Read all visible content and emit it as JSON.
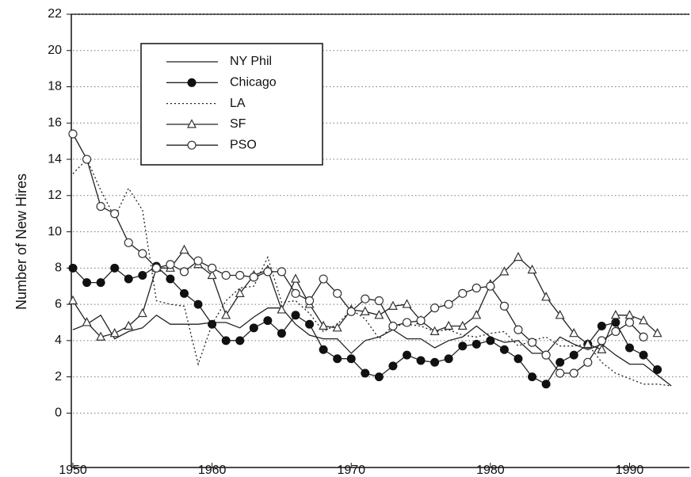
{
  "chart_data": {
    "type": "line",
    "y_label": "Number of New Hires",
    "x": [
      1950,
      1951,
      1952,
      1953,
      1954,
      1955,
      1956,
      1957,
      1958,
      1959,
      1960,
      1961,
      1962,
      1963,
      1964,
      1965,
      1966,
      1967,
      1968,
      1969,
      1970,
      1971,
      1972,
      1973,
      1974,
      1975,
      1976,
      1977,
      1978,
      1979,
      1980,
      1981,
      1982,
      1983,
      1984,
      1985,
      1986,
      1987,
      1988,
      1989,
      1990,
      1991,
      1992,
      1993
    ],
    "xlim": [
      1950,
      1994.3
    ],
    "xticks": [
      1950,
      1960,
      1970,
      1980,
      1990
    ],
    "ylim": [
      -3,
      22
    ],
    "yticks": [
      0,
      2,
      4,
      6,
      8,
      10,
      12,
      14,
      16,
      18,
      20,
      22
    ],
    "grid": true,
    "legend": "upper left",
    "series": [
      {
        "name": "NY Phil",
        "color": "#222222",
        "marker": "none",
        "dash": "solid",
        "values": [
          4.6,
          4.9,
          5.4,
          4.1,
          4.5,
          4.7,
          5.4,
          4.9,
          4.9,
          4.9,
          5.0,
          5.0,
          4.7,
          5.3,
          5.8,
          5.8,
          4.9,
          4.3,
          4.1,
          4.1,
          3.3,
          4.0,
          4.2,
          4.6,
          4.1,
          4.1,
          3.6,
          4.0,
          4.2,
          4.8,
          4.2,
          3.9,
          4.0,
          3.3,
          3.3,
          4.2,
          3.8,
          3.5,
          3.8,
          3.2,
          2.7,
          2.7,
          2.1,
          1.5
        ]
      },
      {
        "name": "Chicago",
        "color": "#222222",
        "marker": "filled-circle",
        "dash": "solid",
        "values": [
          8.0,
          7.2,
          7.2,
          8.0,
          7.4,
          7.6,
          8.1,
          7.4,
          6.6,
          6.0,
          4.9,
          4.0,
          4.0,
          4.7,
          5.1,
          4.4,
          5.4,
          4.9,
          3.5,
          3.0,
          3.0,
          2.2,
          2.0,
          2.6,
          3.2,
          2.9,
          2.8,
          3.0,
          3.7,
          3.8,
          4.0,
          3.5,
          3.0,
          2.0,
          1.6,
          2.8,
          3.2,
          3.8,
          4.8,
          5.0,
          3.6,
          3.2,
          2.4,
          null
        ]
      },
      {
        "name": "LA",
        "color": "#222222",
        "marker": "none",
        "dash": "dotted",
        "values": [
          13.2,
          14.0,
          12.3,
          10.8,
          12.4,
          11.2,
          6.2,
          6.0,
          5.9,
          2.7,
          4.9,
          6.2,
          6.9,
          7.0,
          8.6,
          6.1,
          6.2,
          5.5,
          4.5,
          4.9,
          5.7,
          5.2,
          4.1,
          4.8,
          4.9,
          4.8,
          4.5,
          4.6,
          4.3,
          4.2,
          4.4,
          4.5,
          3.7,
          4.0,
          4.2,
          3.7,
          3.7,
          3.8,
          2.8,
          2.2,
          1.9,
          1.6,
          1.6,
          1.5
        ]
      },
      {
        "name": "SF",
        "color": "#222222",
        "marker": "triangle",
        "dash": "solid",
        "values": [
          6.2,
          5.0,
          4.2,
          4.4,
          4.8,
          5.5,
          8.0,
          8.0,
          9.0,
          8.2,
          7.6,
          5.4,
          6.6,
          7.6,
          7.9,
          5.7,
          7.4,
          6.0,
          4.8,
          4.7,
          5.7,
          5.6,
          5.4,
          5.9,
          6.0,
          5.1,
          4.5,
          4.8,
          4.8,
          5.4,
          7.1,
          7.8,
          8.6,
          7.9,
          6.4,
          5.4,
          4.4,
          3.8,
          3.5,
          5.4,
          5.4,
          5.1,
          4.4,
          null
        ]
      },
      {
        "name": "PSO",
        "color": "#222222",
        "marker": "open-circle",
        "dash": "solid",
        "values": [
          15.4,
          14.0,
          11.4,
          11.0,
          9.4,
          8.8,
          8.0,
          8.2,
          7.8,
          8.4,
          8.0,
          7.6,
          7.6,
          7.5,
          7.8,
          7.8,
          6.6,
          6.2,
          7.4,
          6.6,
          5.6,
          6.3,
          6.2,
          4.8,
          5.0,
          5.1,
          5.8,
          6.0,
          6.6,
          6.9,
          7.0,
          5.9,
          4.6,
          3.9,
          3.2,
          2.2,
          2.2,
          2.8,
          4.0,
          4.5,
          5.0,
          4.2,
          null,
          null
        ]
      }
    ]
  }
}
